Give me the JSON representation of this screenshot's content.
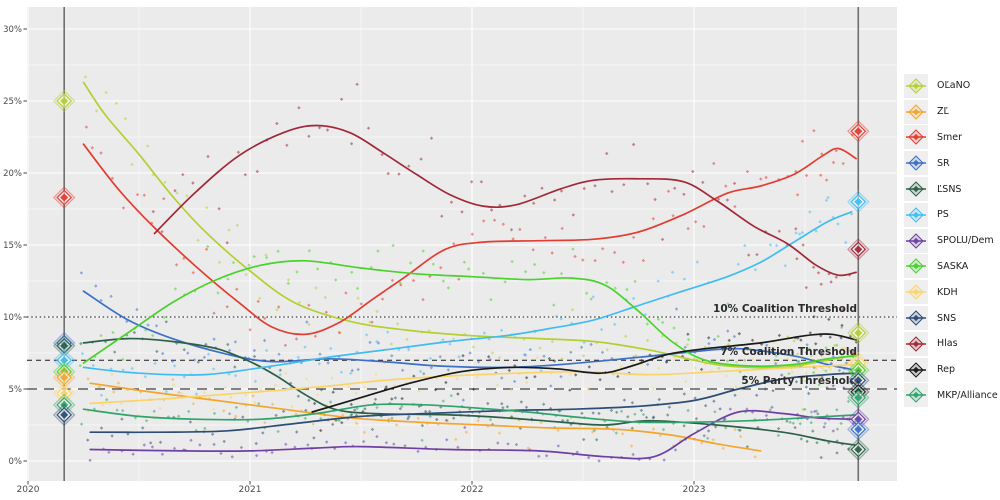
{
  "chart_data": {
    "type": "line",
    "title": "",
    "xlabel": "",
    "ylabel": "",
    "x_ticks": [
      2020,
      2021,
      2022,
      2023
    ],
    "x_minor_ticks": [
      2020.5,
      2021.5,
      2022.5,
      2023.5
    ],
    "y_ticks": [
      0,
      5,
      10,
      15,
      20,
      25,
      30
    ],
    "y_minor_ticks": [
      2.5,
      7.5,
      12.5,
      17.5,
      22.5,
      27.5
    ],
    "y_tick_suffix": "%",
    "grid": true,
    "legend_position": "right",
    "plot_background": "#ebebeb",
    "grid_color": "#ffffff",
    "axis_text_color": "#4a4a4a",
    "election_line_color": "#6e6e6e",
    "thresholds": [
      {
        "label": "10% Coalition Threshold",
        "value": 10,
        "style": "dotted"
      },
      {
        "label": "7% Coalition Threshold",
        "value": 7,
        "style": "dashed"
      },
      {
        "label": "5% Party Threshold",
        "value": 5,
        "style": "longdash"
      }
    ],
    "election_lines": [
      {
        "name": "2020-election",
        "year_decimal": 2020.163
      },
      {
        "name": "2023-election",
        "year_decimal": 2023.74
      }
    ],
    "elections": [
      {
        "year_decimal": 2020.163,
        "results": {
          "OĽaNO": 25.0,
          "Smer": 18.3,
          "SR": 8.2,
          "ĽSNS": 8.0,
          "PS": 7.0,
          "SASKA": 6.2,
          "ZĽ": 5.8,
          "KDH": 4.7,
          "MKP/Alliance": 3.9,
          "SNS": 3.2
        }
      },
      {
        "year_decimal": 2023.74,
        "results": {
          "Smer": 22.9,
          "PS": 18.0,
          "Hlas": 14.7,
          "OĽaNO": 8.9,
          "KDH": 6.8,
          "SASKA": 6.3,
          "SNS": 5.6,
          "Rep": 4.8,
          "MKP/Alliance": 4.4,
          "SPOLU/Dem": 2.9,
          "SR": 2.2,
          "ĽSNS": 0.8
        }
      }
    ],
    "series": [
      {
        "name": "OĽaNO",
        "color": "#b5cf32",
        "jitter": 1.7,
        "trend": [
          [
            2020.25,
            26.3
          ],
          [
            2020.35,
            24.0
          ],
          [
            2020.5,
            21.3
          ],
          [
            2020.65,
            18.4
          ],
          [
            2020.8,
            15.9
          ],
          [
            2021.0,
            13.2
          ],
          [
            2021.2,
            11.0
          ],
          [
            2021.45,
            9.7
          ],
          [
            2021.7,
            9.1
          ],
          [
            2022.0,
            8.7
          ],
          [
            2022.3,
            8.5
          ],
          [
            2022.55,
            8.3
          ],
          [
            2022.8,
            7.7
          ],
          [
            2023.0,
            7.0
          ],
          [
            2023.15,
            6.6
          ],
          [
            2023.4,
            6.5
          ],
          [
            2023.6,
            7.0
          ],
          [
            2023.73,
            7.4
          ]
        ]
      },
      {
        "name": "ZĽ",
        "color": "#f4a52c",
        "jitter": 0.8,
        "trend": [
          [
            2020.28,
            5.4
          ],
          [
            2020.55,
            4.8
          ],
          [
            2020.85,
            4.2
          ],
          [
            2021.15,
            3.6
          ],
          [
            2021.45,
            3.0
          ],
          [
            2021.75,
            2.7
          ],
          [
            2022.05,
            2.5
          ],
          [
            2022.35,
            2.3
          ],
          [
            2022.65,
            2.2
          ],
          [
            2022.9,
            1.8
          ],
          [
            2023.1,
            1.2
          ],
          [
            2023.3,
            0.7
          ]
        ]
      },
      {
        "name": "Smer",
        "color": "#e23d32",
        "jitter": 2.0,
        "trend": [
          [
            2020.25,
            22.0
          ],
          [
            2020.4,
            19.0
          ],
          [
            2020.55,
            16.5
          ],
          [
            2020.75,
            13.6
          ],
          [
            2020.95,
            11.0
          ],
          [
            2021.1,
            9.3
          ],
          [
            2021.25,
            8.8
          ],
          [
            2021.4,
            9.6
          ],
          [
            2021.55,
            11.2
          ],
          [
            2021.7,
            12.8
          ],
          [
            2021.88,
            14.7
          ],
          [
            2022.05,
            15.2
          ],
          [
            2022.3,
            15.3
          ],
          [
            2022.55,
            15.4
          ],
          [
            2022.75,
            15.9
          ],
          [
            2022.95,
            17.1
          ],
          [
            2023.15,
            18.6
          ],
          [
            2023.3,
            19.1
          ],
          [
            2023.45,
            19.9
          ],
          [
            2023.58,
            21.2
          ],
          [
            2023.65,
            21.7
          ],
          [
            2023.73,
            21.0
          ]
        ]
      },
      {
        "name": "SR",
        "color": "#3c6fc6",
        "jitter": 1.2,
        "trend": [
          [
            2020.25,
            11.8
          ],
          [
            2020.45,
            9.8
          ],
          [
            2020.65,
            8.5
          ],
          [
            2020.9,
            7.4
          ],
          [
            2021.1,
            6.9
          ],
          [
            2021.35,
            7.1
          ],
          [
            2021.6,
            6.9
          ],
          [
            2021.85,
            6.6
          ],
          [
            2022.15,
            6.5
          ],
          [
            2022.4,
            6.7
          ],
          [
            2022.75,
            7.2
          ],
          [
            2023.0,
            7.6
          ],
          [
            2023.2,
            7.8
          ],
          [
            2023.45,
            7.3
          ],
          [
            2023.6,
            6.7
          ],
          [
            2023.73,
            6.3
          ]
        ]
      },
      {
        "name": "ĽSNS",
        "color": "#2c5f47",
        "jitter": 1.0,
        "trend": [
          [
            2020.25,
            8.2
          ],
          [
            2020.45,
            8.5
          ],
          [
            2020.65,
            8.3
          ],
          [
            2020.85,
            7.8
          ],
          [
            2021.0,
            6.9
          ],
          [
            2021.12,
            5.9
          ],
          [
            2021.25,
            4.6
          ],
          [
            2021.38,
            3.6
          ],
          [
            2021.55,
            3.3
          ],
          [
            2021.9,
            3.2
          ],
          [
            2022.15,
            3.0
          ],
          [
            2022.4,
            2.7
          ],
          [
            2022.6,
            2.5
          ],
          [
            2022.8,
            2.8
          ],
          [
            2023.1,
            2.5
          ],
          [
            2023.4,
            2.0
          ],
          [
            2023.6,
            1.4
          ],
          [
            2023.73,
            1.1
          ]
        ]
      },
      {
        "name": "PS",
        "color": "#3fbdf2",
        "jitter": 1.5,
        "trend": [
          [
            2020.25,
            6.5
          ],
          [
            2020.5,
            6.1
          ],
          [
            2020.8,
            6.0
          ],
          [
            2021.1,
            6.6
          ],
          [
            2021.35,
            7.2
          ],
          [
            2021.6,
            7.7
          ],
          [
            2021.9,
            8.3
          ],
          [
            2022.15,
            8.7
          ],
          [
            2022.35,
            9.2
          ],
          [
            2022.55,
            9.8
          ],
          [
            2022.75,
            10.8
          ],
          [
            2022.95,
            11.8
          ],
          [
            2023.15,
            12.8
          ],
          [
            2023.3,
            13.8
          ],
          [
            2023.45,
            15.2
          ],
          [
            2023.6,
            16.6
          ],
          [
            2023.71,
            17.3
          ]
        ]
      },
      {
        "name": "SPOLU/Dem",
        "color": "#6e3fa4",
        "jitter": 0.6,
        "trend": [
          [
            2020.28,
            0.8
          ],
          [
            2020.7,
            0.7
          ],
          [
            2021.0,
            0.7
          ],
          [
            2021.3,
            0.9
          ],
          [
            2021.5,
            1.0
          ],
          [
            2021.9,
            0.8
          ],
          [
            2022.3,
            0.7
          ],
          [
            2022.6,
            0.3
          ],
          [
            2022.82,
            0.3
          ],
          [
            2023.0,
            1.9
          ],
          [
            2023.2,
            3.4
          ],
          [
            2023.4,
            3.3
          ],
          [
            2023.55,
            3.0
          ],
          [
            2023.71,
            2.9
          ]
        ]
      },
      {
        "name": "SASKA",
        "color": "#49d22a",
        "jitter": 1.5,
        "trend": [
          [
            2020.25,
            6.8
          ],
          [
            2020.45,
            8.9
          ],
          [
            2020.65,
            11.0
          ],
          [
            2020.85,
            12.6
          ],
          [
            2021.05,
            13.6
          ],
          [
            2021.25,
            13.9
          ],
          [
            2021.5,
            13.4
          ],
          [
            2021.75,
            13.0
          ],
          [
            2022.0,
            12.8
          ],
          [
            2022.25,
            12.6
          ],
          [
            2022.45,
            12.7
          ],
          [
            2022.6,
            12.2
          ],
          [
            2022.75,
            10.4
          ],
          [
            2022.9,
            8.3
          ],
          [
            2023.05,
            7.0
          ],
          [
            2023.25,
            6.6
          ],
          [
            2023.45,
            6.7
          ],
          [
            2023.6,
            7.1
          ],
          [
            2023.73,
            7.3
          ]
        ]
      },
      {
        "name": "KDH",
        "color": "#fbd468",
        "jitter": 1.0,
        "trend": [
          [
            2020.28,
            4.0
          ],
          [
            2020.6,
            4.3
          ],
          [
            2020.95,
            4.7
          ],
          [
            2021.35,
            5.2
          ],
          [
            2021.6,
            5.6
          ],
          [
            2021.9,
            5.9
          ],
          [
            2022.2,
            6.1
          ],
          [
            2022.5,
            6.2
          ],
          [
            2022.8,
            6.0
          ],
          [
            2023.1,
            6.2
          ],
          [
            2023.35,
            6.4
          ],
          [
            2023.6,
            6.6
          ],
          [
            2023.73,
            6.7
          ]
        ]
      },
      {
        "name": "SNS",
        "color": "#2d4d75",
        "jitter": 1.0,
        "trend": [
          [
            2020.28,
            2.0
          ],
          [
            2020.6,
            2.0
          ],
          [
            2020.9,
            2.1
          ],
          [
            2021.2,
            2.6
          ],
          [
            2021.5,
            3.1
          ],
          [
            2021.8,
            3.3
          ],
          [
            2022.15,
            3.5
          ],
          [
            2022.45,
            3.6
          ],
          [
            2022.75,
            3.8
          ],
          [
            2023.0,
            4.2
          ],
          [
            2023.2,
            5.0
          ],
          [
            2023.4,
            5.7
          ],
          [
            2023.6,
            6.0
          ],
          [
            2023.73,
            6.1
          ]
        ]
      },
      {
        "name": "Hlas",
        "color": "#a02839",
        "jitter": 2.0,
        "trend": [
          [
            2020.57,
            15.8
          ],
          [
            2020.75,
            18.6
          ],
          [
            2020.95,
            21.2
          ],
          [
            2021.15,
            22.8
          ],
          [
            2021.3,
            23.3
          ],
          [
            2021.45,
            22.8
          ],
          [
            2021.6,
            21.4
          ],
          [
            2021.75,
            19.9
          ],
          [
            2021.9,
            18.5
          ],
          [
            2022.05,
            17.7
          ],
          [
            2022.2,
            17.8
          ],
          [
            2022.4,
            18.9
          ],
          [
            2022.55,
            19.5
          ],
          [
            2022.75,
            19.6
          ],
          [
            2022.95,
            19.4
          ],
          [
            2023.1,
            18.1
          ],
          [
            2023.27,
            16.3
          ],
          [
            2023.42,
            15.1
          ],
          [
            2023.55,
            13.6
          ],
          [
            2023.65,
            12.9
          ],
          [
            2023.73,
            13.1
          ]
        ]
      },
      {
        "name": "Rep",
        "color": "#191919",
        "jitter": 1.3,
        "trend": [
          [
            2021.28,
            3.4
          ],
          [
            2021.5,
            4.4
          ],
          [
            2021.72,
            5.4
          ],
          [
            2021.95,
            6.2
          ],
          [
            2022.17,
            6.5
          ],
          [
            2022.38,
            6.4
          ],
          [
            2022.58,
            6.1
          ],
          [
            2022.72,
            6.6
          ],
          [
            2022.88,
            7.4
          ],
          [
            2023.05,
            7.8
          ],
          [
            2023.3,
            8.2
          ],
          [
            2023.5,
            8.7
          ],
          [
            2023.62,
            8.8
          ],
          [
            2023.73,
            8.4
          ]
        ]
      },
      {
        "name": "MKP/Alliance",
        "color": "#2fa36b",
        "jitter": 0.9,
        "trend": [
          [
            2020.25,
            3.6
          ],
          [
            2020.5,
            3.1
          ],
          [
            2020.75,
            2.9
          ],
          [
            2021.05,
            2.9
          ],
          [
            2021.3,
            3.3
          ],
          [
            2021.55,
            3.9
          ],
          [
            2021.78,
            3.9
          ],
          [
            2022.0,
            3.7
          ],
          [
            2022.25,
            3.4
          ],
          [
            2022.5,
            3.0
          ],
          [
            2022.75,
            2.7
          ],
          [
            2023.0,
            2.7
          ],
          [
            2023.25,
            2.8
          ],
          [
            2023.5,
            3.0
          ],
          [
            2023.73,
            3.2
          ]
        ]
      }
    ],
    "scatter": {
      "seed": 20230930,
      "step_years": 0.046,
      "dense_after": 2023.42,
      "dense_step": 0.023,
      "opacity": 0.55,
      "point_size": 1.7
    }
  }
}
